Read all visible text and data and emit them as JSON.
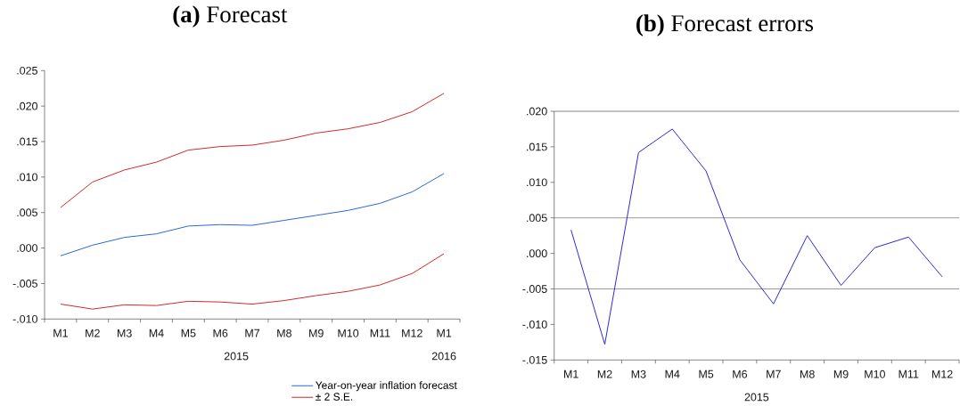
{
  "chart_data": [
    {
      "type": "line",
      "title": "**(a)** Forecast",
      "categories": [
        "M1",
        "M2",
        "M3",
        "M4",
        "M5",
        "M6",
        "M7",
        "M8",
        "M9",
        "M10",
        "M11",
        "M12",
        "M1"
      ],
      "series": [
        {
          "name": "Year-on-year inflation forecast",
          "color": "#2a6ad8",
          "values": [
            -0.0011,
            0.0004,
            0.0015,
            0.002,
            0.0031,
            0.0033,
            0.0032,
            0.0039,
            0.0046,
            0.0053,
            0.0063,
            0.0079,
            0.0105
          ]
        },
        {
          "name": "± 2 S.E.",
          "color": "#d42a2a",
          "values": [
            0.0057,
            0.0093,
            0.011,
            0.0121,
            0.0138,
            0.0143,
            0.0145,
            0.0152,
            0.0162,
            0.0168,
            0.0177,
            0.0192,
            0.0218
          ]
        },
        {
          "color": "#d42a2a",
          "values": [
            -0.0079,
            -0.0086,
            -0.008,
            -0.0081,
            -0.0075,
            -0.0076,
            -0.0079,
            -0.0074,
            -0.0067,
            -0.0061,
            -0.0052,
            -0.0036,
            -0.0008
          ]
        }
      ],
      "ylim": [
        -0.01,
        0.025
      ],
      "yticks": [
        {
          "value": -0.01,
          "label": "-.010"
        },
        {
          "value": -0.005,
          "label": "-.005"
        },
        {
          "value": 0,
          "label": ".000"
        },
        {
          "value": 0.005,
          "label": ".005"
        },
        {
          "value": 0.01,
          "label": ".010"
        },
        {
          "value": 0.015,
          "label": ".015"
        },
        {
          "value": 0.02,
          "label": ".020"
        },
        {
          "value": 0.025,
          "label": ".025"
        }
      ],
      "legend": "bottom right",
      "annotations": [
        "2015",
        "2016"
      ]
    },
    {
      "type": "line",
      "title": "**(b)** Forecast errors",
      "categories": [
        "M1",
        "M2",
        "M3",
        "M4",
        "M5",
        "M6",
        "M7",
        "M8",
        "M9",
        "M10",
        "M11",
        "M12"
      ],
      "color": "#2b2bd9",
      "values": [
        0.0033,
        -0.0128,
        0.0142,
        0.0175,
        0.0116,
        -0.0009,
        -0.0071,
        0.0025,
        -0.0045,
        0.0008,
        0.0023,
        -0.0033
      ],
      "ylim": [
        -0.015,
        0.02
      ],
      "yticks": [
        {
          "value": -0.015,
          "label": "-.015"
        },
        {
          "value": -0.01,
          "label": "-.010"
        },
        {
          "value": -0.005,
          "label": "-.005"
        },
        {
          "value": 0,
          "label": ".000"
        },
        {
          "value": 0.005,
          "label": ".005"
        },
        {
          "value": 0.01,
          "label": ".010"
        },
        {
          "value": 0.015,
          "label": ".015"
        },
        {
          "value": 0.02,
          "label": ".020"
        }
      ],
      "ref_lines": [
        {
          "axis": "y",
          "value": 0.005,
          "color": "#808080"
        },
        {
          "axis": "y",
          "value": -0.005,
          "color": "#808080"
        }
      ],
      "annotations": [
        "2015"
      ]
    }
  ]
}
